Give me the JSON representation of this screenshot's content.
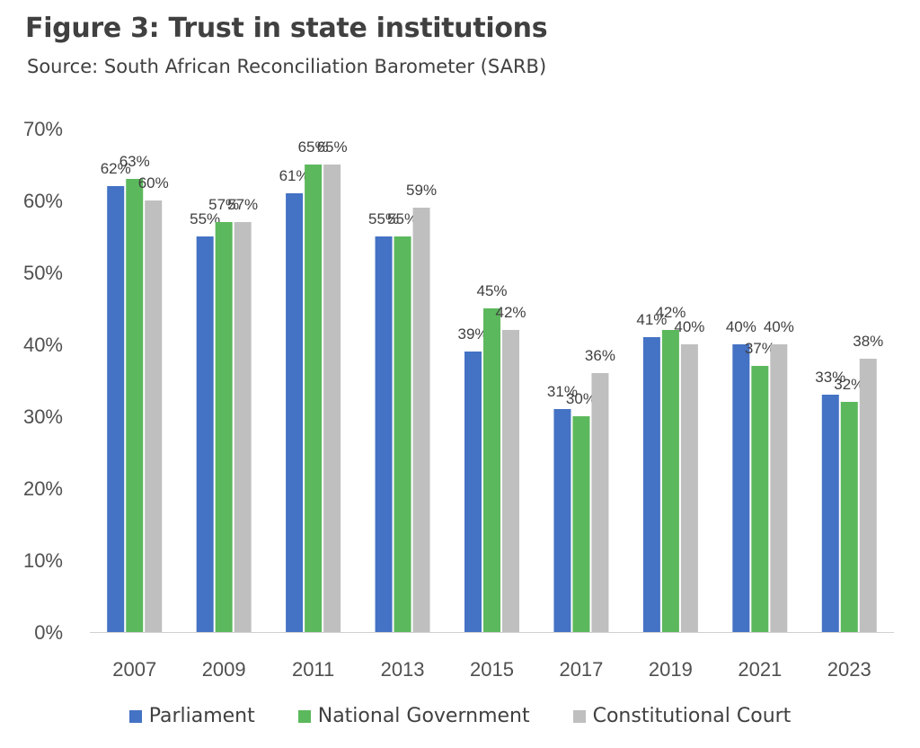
{
  "title": "Figure 3: Trust in state institutions",
  "subtitle": "Source: South African Reconciliation Barometer (SARB)",
  "chart_data": {
    "type": "bar",
    "categories": [
      "2007",
      "2009",
      "2011",
      "2013",
      "2015",
      "2017",
      "2019",
      "2021",
      "2023"
    ],
    "series": [
      {
        "name": "Parliament",
        "color": "#4472C4",
        "values": [
          62,
          55,
          61,
          55,
          39,
          31,
          41,
          40,
          33
        ]
      },
      {
        "name": "National Government",
        "color": "#5CB85C",
        "values": [
          63,
          57,
          65,
          55,
          45,
          30,
          42,
          37,
          32
        ]
      },
      {
        "name": "Constitutional Court",
        "color": "#BFBFBF",
        "values": [
          60,
          57,
          65,
          59,
          42,
          36,
          40,
          40,
          38
        ]
      }
    ],
    "value_suffix": "%",
    "ylim": [
      0,
      70
    ],
    "yticks": [
      "0%",
      "10%",
      "20%",
      "30%",
      "40%",
      "50%",
      "60%",
      "70%"
    ],
    "grid": false,
    "legend": "bottom"
  }
}
